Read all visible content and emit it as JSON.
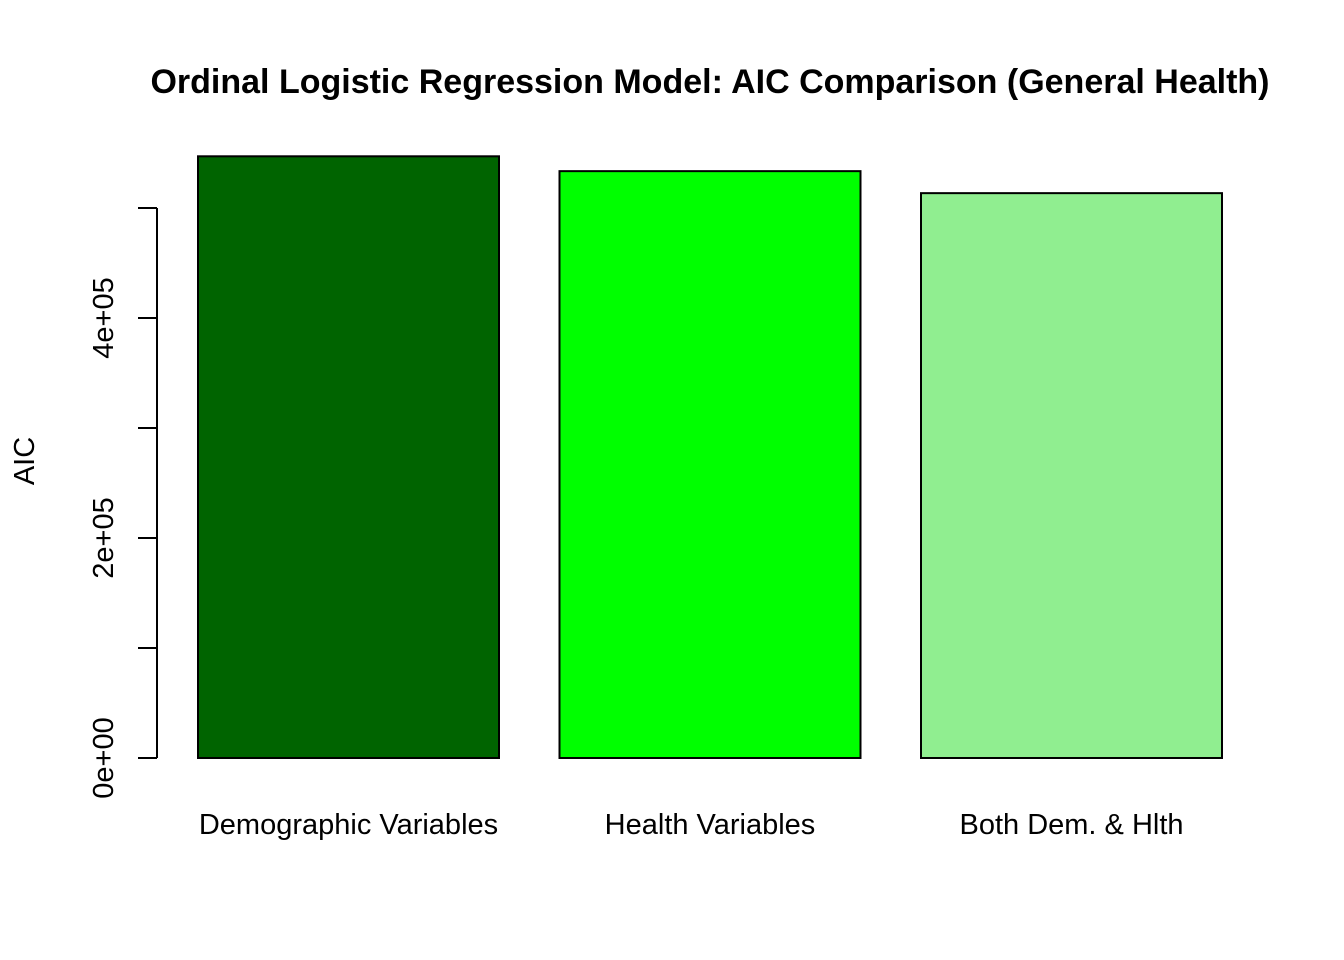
{
  "chart_data": {
    "type": "bar",
    "title": "Ordinal Logistic Regression Model: AIC Comparison (General Health)",
    "xlabel": "",
    "ylabel": "AIC",
    "categories": [
      "Demographic Variables",
      "Health Variables",
      "Both Dem. & Hlth"
    ],
    "values": [
      547000,
      533500,
      513500
    ],
    "colors": [
      "#006400",
      "#00FF00",
      "#90EE90"
    ],
    "ylim": [
      0,
      500000
    ],
    "major_ticks": [
      0,
      200000,
      400000
    ],
    "tick_labels": [
      "0e+00",
      "2e+05",
      "4e+05"
    ],
    "minor_ticks": [
      100000,
      300000,
      500000
    ],
    "grid": false,
    "legend": "none"
  }
}
